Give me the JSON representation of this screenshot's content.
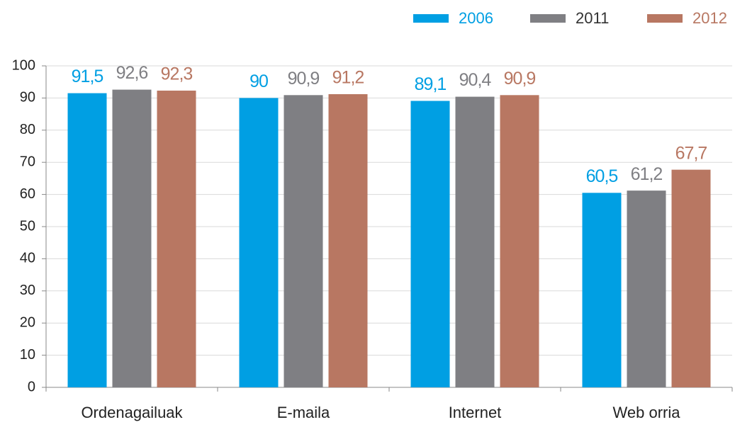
{
  "chart_data": {
    "type": "bar",
    "categories": [
      "Ordenagailuak",
      "E-maila",
      "Internet",
      "Web orria"
    ],
    "series": [
      {
        "name": "2006",
        "color": "#009fe3",
        "values": [
          91.5,
          90,
          89.1,
          60.5
        ],
        "value_labels": [
          "91,5",
          "90",
          "89,1",
          "60,5"
        ]
      },
      {
        "name": "2011",
        "color": "#7f7f83",
        "values": [
          92.6,
          90.9,
          90.4,
          61.2
        ],
        "value_labels": [
          "92,6",
          "90,9",
          "90,4",
          "61,2"
        ]
      },
      {
        "name": "2012",
        "color": "#b87762",
        "values": [
          92.3,
          91.2,
          90.9,
          67.7
        ],
        "value_labels": [
          "92,3",
          "91,2",
          "90,9",
          "67,7"
        ]
      }
    ],
    "ylim": [
      0,
      100
    ],
    "yticks": [
      0,
      10,
      20,
      30,
      40,
      50,
      60,
      70,
      80,
      90,
      100
    ],
    "grid": true,
    "legend": "top-right"
  }
}
